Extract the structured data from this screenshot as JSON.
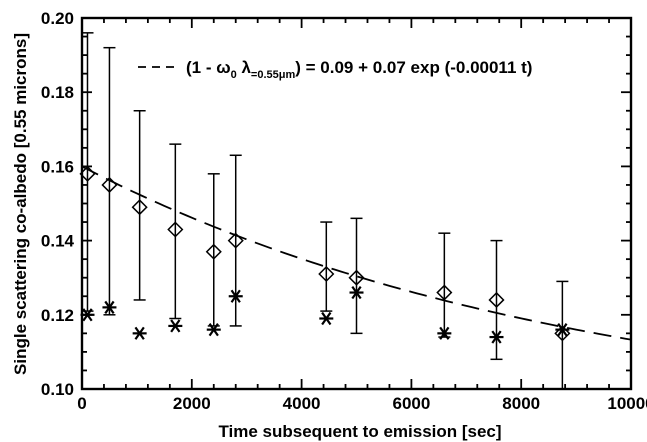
{
  "chart_data": {
    "type": "scatter",
    "xlabel": "Time subsequent to emission [sec]",
    "ylabel": "Single scattering co-albedo [0.55 microns]",
    "xlim": [
      0,
      10000
    ],
    "ylim": [
      0.1,
      0.2
    ],
    "x_ticks": [
      0,
      2000,
      4000,
      6000,
      8000,
      10000
    ],
    "y_ticks": [
      0.1,
      0.12,
      0.14,
      0.16,
      0.18,
      0.2
    ],
    "x_tick_labels": [
      "0",
      "2000",
      "4000",
      "6000",
      "8000",
      "10000"
    ],
    "y_tick_labels": [
      "0.10",
      "0.12",
      "0.14",
      "0.16",
      "0.18",
      "0.20"
    ],
    "grid": false,
    "legend_position": "top-right",
    "fit": {
      "label_parts": {
        "prefix": "(1 - ω",
        "sub_omega": "0",
        "lambda": " λ",
        "sub_lambda": "=0.55μm",
        "suffix": ") = 0.09 + 0.07 exp (-0.00011 t)"
      },
      "a": 0.09,
      "b": 0.07,
      "k": 0.00011,
      "style": "dashed"
    },
    "series": [
      {
        "marker": "diamond",
        "x": [
          100,
          500,
          1050,
          1700,
          2400,
          2800,
          4450,
          5000,
          6600,
          7550,
          8750
        ],
        "y": [
          0.158,
          0.155,
          0.149,
          0.143,
          0.137,
          0.14,
          0.131,
          0.13,
          0.126,
          0.124,
          0.115
        ],
        "err_low": [
          0.121,
          0.12,
          0.124,
          0.119,
          0.117,
          0.117,
          0.121,
          0.115,
          0.114,
          0.108,
          0.1
        ],
        "err_high": [
          0.196,
          0.192,
          0.175,
          0.166,
          0.158,
          0.163,
          0.145,
          0.146,
          0.142,
          0.14,
          0.129
        ]
      },
      {
        "marker": "asterisk",
        "x": [
          100,
          500,
          1050,
          1700,
          2400,
          2800,
          4450,
          5000,
          6600,
          7550,
          8750
        ],
        "y": [
          0.12,
          0.122,
          0.115,
          0.117,
          0.116,
          0.125,
          0.119,
          0.126,
          0.115,
          0.114,
          0.116
        ]
      }
    ]
  }
}
